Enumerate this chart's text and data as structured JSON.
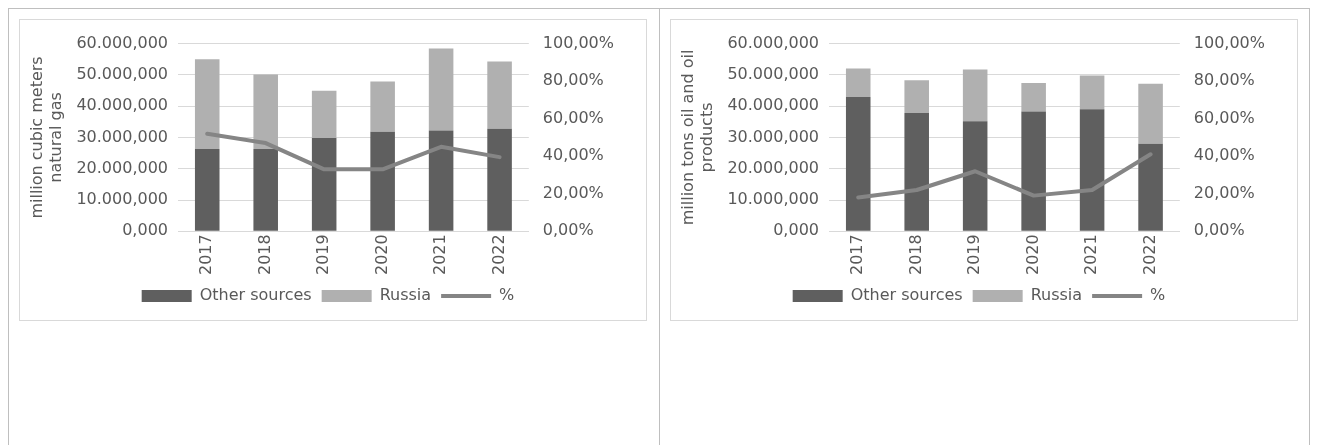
{
  "chart_data": [
    {
      "type": "bar",
      "stacked": true,
      "categories": [
        "2017",
        "2018",
        "2019",
        "2020",
        "2021",
        "2022"
      ],
      "series": [
        {
          "name": "Other sources",
          "color": "#5f5f5f",
          "values": [
            26300,
            26300,
            29800,
            31800,
            32200,
            32800
          ]
        },
        {
          "name": "Russia",
          "color": "#b0b0b0",
          "values": [
            28700,
            23800,
            15100,
            16100,
            26200,
            21500
          ]
        },
        {
          "name": "%",
          "type": "line",
          "axis": "y2",
          "color": "#858585",
          "values": [
            52,
            47,
            33,
            33,
            45,
            39.5
          ]
        }
      ],
      "ylabel": "million cubic meters natural gas",
      "ylim": [
        0,
        60000
      ],
      "yticks": [
        {
          "value": 0,
          "label": "0,000"
        },
        {
          "value": 10000,
          "label": "10.000,000"
        },
        {
          "value": 20000,
          "label": "20.000,000"
        },
        {
          "value": 30000,
          "label": "30.000,000"
        },
        {
          "value": 40000,
          "label": "40.000,000"
        },
        {
          "value": 50000,
          "label": "50.000,000"
        },
        {
          "value": 60000,
          "label": "60.000,000"
        }
      ],
      "y2lim": [
        0,
        100
      ],
      "y2ticks": [
        {
          "value": 0,
          "label": "0,00%"
        },
        {
          "value": 20,
          "label": "20,00%"
        },
        {
          "value": 40,
          "label": "40,00%"
        },
        {
          "value": 60,
          "label": "60,00%"
        },
        {
          "value": 80,
          "label": "80,00%"
        },
        {
          "value": 100,
          "label": "100,00%"
        }
      ],
      "grid": "y",
      "legend": "bottom",
      "marker": "none"
    },
    {
      "type": "bar",
      "stacked": true,
      "categories": [
        "2017",
        "2018",
        "2019",
        "2020",
        "2021",
        "2022"
      ],
      "series": [
        {
          "name": "Other sources",
          "color": "#5f5f5f",
          "values": [
            42900,
            37800,
            35200,
            38300,
            39000,
            28000
          ]
        },
        {
          "name": "Russia",
          "color": "#b0b0b0",
          "values": [
            9100,
            10500,
            16500,
            9100,
            10800,
            19200
          ]
        },
        {
          "name": "%",
          "type": "line",
          "axis": "y2",
          "color": "#858585",
          "values": [
            18,
            22,
            32,
            19,
            22,
            41
          ]
        }
      ],
      "ylabel": "million tons oil and oil products",
      "ylim": [
        0,
        60000
      ],
      "yticks": [
        {
          "value": 0,
          "label": "0,000"
        },
        {
          "value": 10000,
          "label": "10.000,000"
        },
        {
          "value": 20000,
          "label": "20.000,000"
        },
        {
          "value": 30000,
          "label": "30.000,000"
        },
        {
          "value": 40000,
          "label": "40.000,000"
        },
        {
          "value": 50000,
          "label": "50.000,000"
        },
        {
          "value": 60000,
          "label": "60.000,000"
        }
      ],
      "y2lim": [
        0,
        100
      ],
      "y2ticks": [
        {
          "value": 0,
          "label": "0,00%"
        },
        {
          "value": 20,
          "label": "20,00%"
        },
        {
          "value": 40,
          "label": "40,00%"
        },
        {
          "value": 60,
          "label": "60,00%"
        },
        {
          "value": 80,
          "label": "80,00%"
        },
        {
          "value": 100,
          "label": "100,00%"
        }
      ],
      "grid": "y",
      "legend": "bottom",
      "marker": "none"
    }
  ]
}
